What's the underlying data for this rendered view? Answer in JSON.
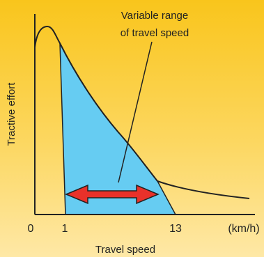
{
  "annotation": {
    "line1": "Variable range",
    "line2": "of travel speed"
  },
  "y_axis_label": "Tractive effort",
  "x_axis_label": "Travel speed",
  "ticks": {
    "t0": "0",
    "t1": "1",
    "t13": "13",
    "unit": "(km/h)"
  },
  "colors": {
    "background_top": "#f9c51c",
    "background_bottom": "#fee8a6",
    "range_fill": "#66ccf2",
    "arrow": "#e8312a",
    "curve": "#222222"
  }
}
